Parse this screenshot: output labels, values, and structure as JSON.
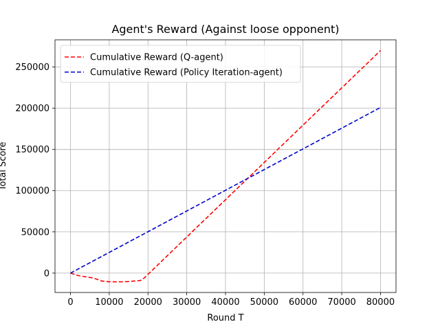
{
  "chart_data": {
    "type": "line",
    "title": "Agent's Reward (Against loose opponent)",
    "xlabel": "Round T",
    "ylabel": "Total Score",
    "xlim": [
      -4000,
      84000
    ],
    "ylim": [
      -23500,
      283000
    ],
    "xticks": [
      0,
      10000,
      20000,
      30000,
      40000,
      50000,
      60000,
      70000,
      80000
    ],
    "yticks": [
      0,
      50000,
      100000,
      150000,
      200000,
      250000
    ],
    "grid": true,
    "legend_position": "top-left",
    "series": [
      {
        "name": "Cumulative Reward (Q-agent)",
        "color": "#ff0000",
        "linestyle": "dashed",
        "points": [
          [
            0,
            0
          ],
          [
            2000,
            -3000
          ],
          [
            6000,
            -6000
          ],
          [
            8000,
            -9500
          ],
          [
            10000,
            -10500
          ],
          [
            14000,
            -10500
          ],
          [
            18000,
            -9000
          ],
          [
            19000,
            -6000
          ],
          [
            80000,
            270000
          ]
        ]
      },
      {
        "name": "Cumulative Reward (Policy Iteration-agent)",
        "color": "#0000cc",
        "linestyle": "dashed",
        "points": [
          [
            0,
            0
          ],
          [
            80000,
            201000
          ]
        ]
      }
    ]
  }
}
